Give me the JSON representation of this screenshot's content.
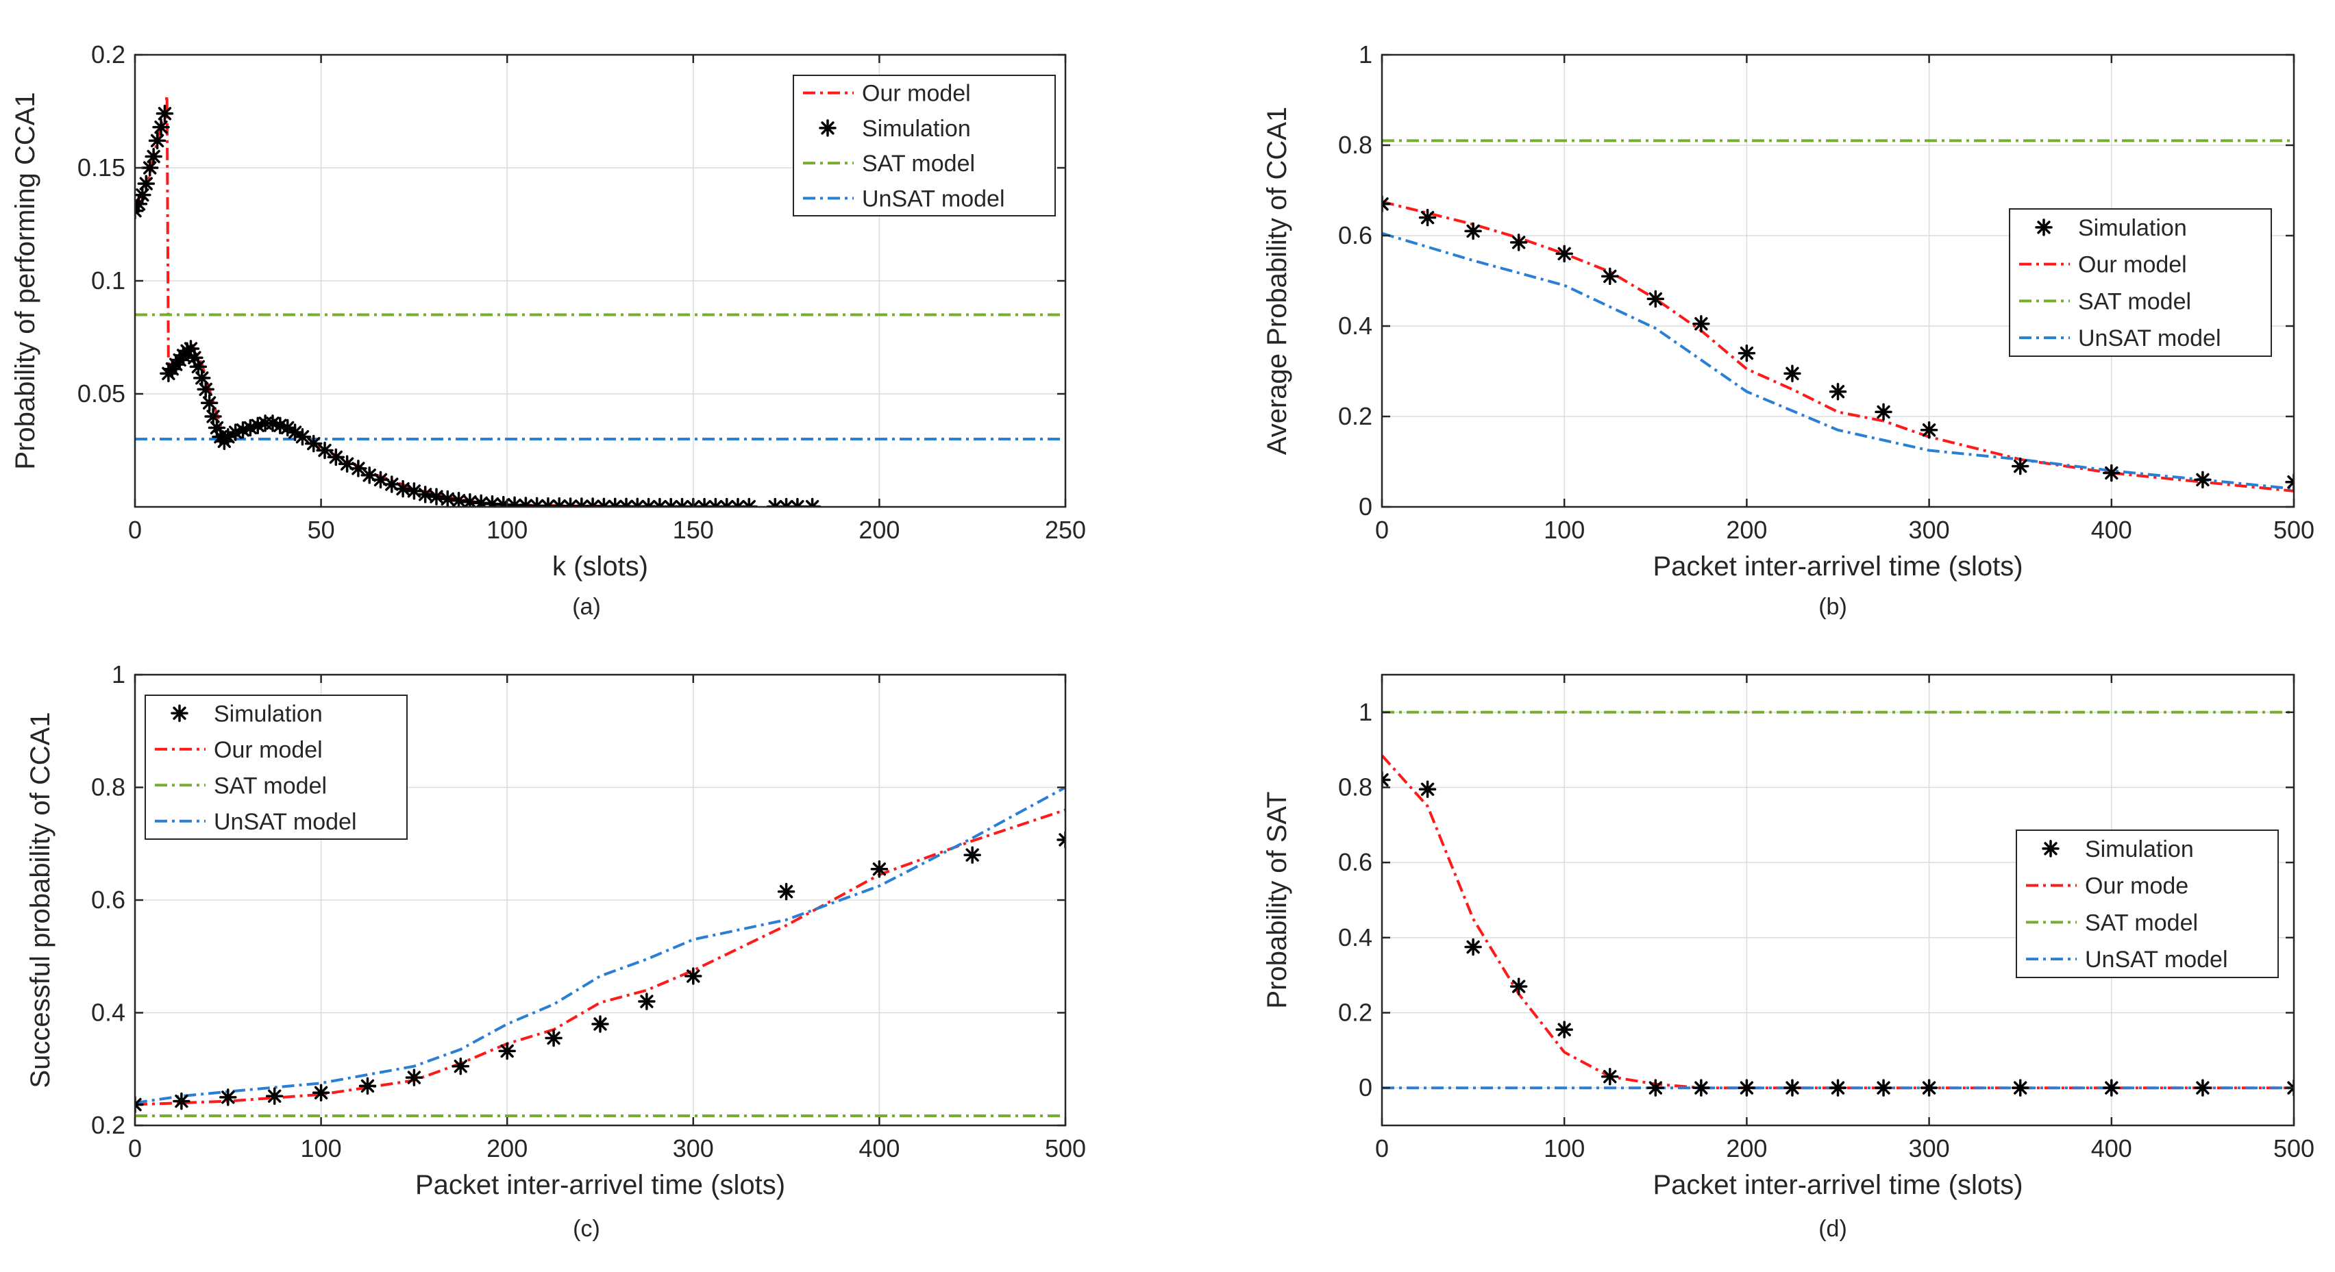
{
  "colors": {
    "our_model": "#ff1a1a",
    "simulation": "#000000",
    "sat_model": "#77ac30",
    "unsat_model": "#2a7fd4",
    "axis": "#262626",
    "grid": "#dcdcdc"
  },
  "chart_data": [
    {
      "type": "line",
      "panel_label": "(a)",
      "title": "",
      "xlabel": "k (slots)",
      "ylabel": "Probability of performing CCA1",
      "xlim": [
        0,
        250
      ],
      "ylim": [
        0,
        0.2
      ],
      "xticks": [
        0,
        50,
        100,
        150,
        200,
        250
      ],
      "yticks": [
        0.05,
        0.1,
        0.15,
        0.2
      ],
      "xtick_labels": [
        "0",
        "50",
        "100",
        "150",
        "200",
        "250"
      ],
      "ytick_labels": [
        "0.05",
        "0.1",
        "0.15",
        "0.2"
      ],
      "grid": true,
      "legend_position": "top-right",
      "legend": [
        "Our model",
        "Simulation",
        "SAT model",
        "UnSAT model"
      ],
      "series": [
        {
          "name": "Our model",
          "style": "dashdot",
          "x": [
            0,
            2,
            4,
            6,
            8,
            8.6,
            9,
            12,
            14,
            16,
            18,
            20,
            22,
            24,
            26,
            28,
            30,
            33,
            36,
            39,
            42,
            46,
            50,
            55,
            60,
            65,
            70,
            75,
            80,
            85,
            90,
            95,
            100,
            110,
            120,
            130,
            140,
            150,
            165
          ],
          "y": [
            0.131,
            0.137,
            0.147,
            0.162,
            0.175,
            0.182,
            0.06,
            0.064,
            0.068,
            0.07,
            0.063,
            0.052,
            0.041,
            0.031,
            0.031,
            0.033,
            0.034,
            0.036,
            0.037,
            0.036,
            0.034,
            0.03,
            0.026,
            0.022,
            0.018,
            0.014,
            0.011,
            0.008,
            0.006,
            0.004,
            0.0025,
            0.0015,
            0.001,
            0.0006,
            0.0004,
            0.0003,
            0.0002,
            0.0001,
            0.0001
          ]
        },
        {
          "name": "Simulation",
          "style": "marker",
          "x": [
            0,
            1,
            2,
            3,
            4,
            5,
            6,
            7,
            8,
            9,
            10,
            11,
            12,
            13,
            14,
            15,
            16,
            17,
            18,
            19,
            20,
            21,
            22,
            23,
            24,
            25,
            27,
            29,
            31,
            33,
            35,
            37,
            39,
            41,
            43,
            45,
            48,
            51,
            54,
            57,
            60,
            63,
            66,
            69,
            72,
            75,
            78,
            81,
            84,
            87,
            90,
            93,
            96,
            99,
            102,
            105,
            108,
            111,
            114,
            117,
            120,
            123,
            126,
            129,
            132,
            135,
            138,
            141,
            144,
            147,
            150,
            153,
            156,
            159,
            162,
            165,
            172,
            175,
            178,
            182
          ],
          "y": [
            0.131,
            0.134,
            0.138,
            0.143,
            0.15,
            0.155,
            0.162,
            0.168,
            0.174,
            0.059,
            0.061,
            0.063,
            0.065,
            0.067,
            0.069,
            0.07,
            0.066,
            0.062,
            0.057,
            0.052,
            0.046,
            0.04,
            0.035,
            0.031,
            0.029,
            0.031,
            0.033,
            0.034,
            0.035,
            0.036,
            0.037,
            0.037,
            0.036,
            0.035,
            0.033,
            0.031,
            0.028,
            0.025,
            0.022,
            0.019,
            0.017,
            0.014,
            0.012,
            0.01,
            0.008,
            0.007,
            0.0055,
            0.0045,
            0.0035,
            0.0028,
            0.0022,
            0.0017,
            0.0013,
            0.001,
            0.0008,
            0.0006,
            0.0005,
            0.0004,
            0.0004,
            0.0003,
            0.0003,
            0.0003,
            0.0002,
            0.0002,
            0.0002,
            0.0002,
            0.0001,
            0.0001,
            0.0001,
            0.0001,
            0.0001,
            0.0001,
            0.0001,
            0.0001,
            0.0001,
            0.0001,
            0.0001,
            0.0001,
            0.0001,
            0.0001
          ]
        },
        {
          "name": "SAT model",
          "style": "dashdot",
          "x": [
            0,
            250
          ],
          "y": [
            0.085,
            0.085
          ]
        },
        {
          "name": "UnSAT model",
          "style": "dashdot",
          "x": [
            0,
            250
          ],
          "y": [
            0.03,
            0.03
          ]
        }
      ]
    },
    {
      "type": "line",
      "panel_label": "(b)",
      "title": "",
      "xlabel": "Packet inter-arrivel time (slots)",
      "ylabel": "Average Probability of CCA1",
      "xlim": [
        0,
        500
      ],
      "ylim": [
        0,
        1
      ],
      "xticks": [
        0,
        100,
        200,
        300,
        400,
        500
      ],
      "yticks": [
        0,
        0.2,
        0.4,
        0.6,
        0.8,
        1
      ],
      "xtick_labels": [
        "0",
        "100",
        "200",
        "300",
        "400",
        "500"
      ],
      "ytick_labels": [
        "0",
        "0.2",
        "0.4",
        "0.6",
        "0.8",
        "1"
      ],
      "grid": true,
      "legend_position": "right",
      "legend": [
        "Simulation",
        "Our model",
        "SAT model",
        "UnSAT model"
      ],
      "series": [
        {
          "name": "Simulation",
          "style": "marker",
          "x": [
            0,
            25,
            50,
            75,
            100,
            125,
            150,
            175,
            200,
            225,
            250,
            275,
            300,
            350,
            400,
            450,
            500
          ],
          "y": [
            0.67,
            0.64,
            0.61,
            0.585,
            0.56,
            0.51,
            0.46,
            0.405,
            0.34,
            0.295,
            0.255,
            0.21,
            0.17,
            0.09,
            0.075,
            0.06,
            0.055
          ]
        },
        {
          "name": "Our model",
          "style": "dashdot",
          "x": [
            0,
            50,
            75,
            100,
            125,
            150,
            175,
            200,
            225,
            250,
            275,
            300,
            350,
            400,
            450,
            500
          ],
          "y": [
            0.675,
            0.625,
            0.595,
            0.56,
            0.52,
            0.46,
            0.39,
            0.305,
            0.26,
            0.21,
            0.19,
            0.155,
            0.105,
            0.075,
            0.055,
            0.035
          ]
        },
        {
          "name": "SAT model",
          "style": "dashdot",
          "x": [
            0,
            500
          ],
          "y": [
            0.81,
            0.81
          ]
        },
        {
          "name": "UnSAT model",
          "style": "dashdot",
          "x": [
            0,
            50,
            100,
            150,
            200,
            250,
            300,
            350,
            400,
            450,
            500
          ],
          "y": [
            0.605,
            0.545,
            0.49,
            0.395,
            0.255,
            0.17,
            0.125,
            0.105,
            0.08,
            0.06,
            0.04
          ]
        }
      ]
    },
    {
      "type": "line",
      "panel_label": "(c)",
      "title": "",
      "xlabel": "Packet inter-arrivel time (slots)",
      "ylabel": "Successful probability of CCA1",
      "xlim": [
        0,
        500
      ],
      "ylim": [
        0.2,
        1
      ],
      "xticks": [
        0,
        100,
        200,
        300,
        400,
        500
      ],
      "yticks": [
        0.2,
        0.4,
        0.6,
        0.8,
        1
      ],
      "xtick_labels": [
        "0",
        "100",
        "200",
        "300",
        "400",
        "500"
      ],
      "ytick_labels": [
        "0.2",
        "0.4",
        "0.6",
        "0.8",
        "1"
      ],
      "grid": true,
      "legend_position": "top-left",
      "legend": [
        "Simulation",
        "Our model",
        "SAT model",
        "UnSAT model"
      ],
      "series": [
        {
          "name": "Simulation",
          "style": "marker",
          "x": [
            0,
            25,
            50,
            75,
            100,
            125,
            150,
            175,
            200,
            225,
            250,
            275,
            300,
            350,
            400,
            450,
            500
          ],
          "y": [
            0.237,
            0.243,
            0.25,
            0.252,
            0.258,
            0.27,
            0.285,
            0.305,
            0.332,
            0.355,
            0.38,
            0.42,
            0.465,
            0.615,
            0.655,
            0.68,
            0.707
          ]
        },
        {
          "name": "Our model",
          "style": "dashdot",
          "x": [
            0,
            50,
            100,
            150,
            175,
            200,
            225,
            250,
            275,
            300,
            350,
            400,
            450,
            500
          ],
          "y": [
            0.237,
            0.243,
            0.255,
            0.28,
            0.31,
            0.345,
            0.37,
            0.418,
            0.44,
            0.475,
            0.555,
            0.645,
            0.705,
            0.76
          ]
        },
        {
          "name": "SAT model",
          "style": "dashdot",
          "x": [
            0,
            500
          ],
          "y": [
            0.217,
            0.217
          ]
        },
        {
          "name": "UnSAT model",
          "style": "dashdot",
          "x": [
            0,
            25,
            50,
            100,
            150,
            175,
            200,
            225,
            250,
            275,
            300,
            350,
            400,
            450,
            500
          ],
          "y": [
            0.24,
            0.252,
            0.26,
            0.275,
            0.305,
            0.335,
            0.38,
            0.415,
            0.465,
            0.495,
            0.53,
            0.565,
            0.625,
            0.71,
            0.8
          ]
        }
      ]
    },
    {
      "type": "line",
      "panel_label": "(d)",
      "title": "",
      "xlabel": "Packet inter-arrivel time (slots)",
      "ylabel": "Probability of SAT",
      "xlim": [
        0,
        500
      ],
      "ylim": [
        -0.1,
        1.1
      ],
      "xticks": [
        0,
        100,
        200,
        300,
        400,
        500
      ],
      "yticks": [
        0,
        0.2,
        0.4,
        0.6,
        0.8,
        1
      ],
      "xtick_labels": [
        "0",
        "100",
        "200",
        "300",
        "400",
        "500"
      ],
      "ytick_labels": [
        "0",
        "0.2",
        "0.4",
        "0.6",
        "0.8",
        "1"
      ],
      "grid": true,
      "legend_position": "right",
      "legend": [
        "Simulation",
        "Our mode",
        "SAT model",
        "UnSAT model"
      ],
      "series": [
        {
          "name": "Simulation",
          "style": "marker",
          "x": [
            0,
            25,
            50,
            75,
            100,
            125,
            150,
            175,
            200,
            225,
            250,
            275,
            300,
            350,
            400,
            450,
            500
          ],
          "y": [
            0.82,
            0.795,
            0.375,
            0.27,
            0.155,
            0.03,
            0,
            0,
            0,
            0,
            0,
            0,
            0,
            0,
            0,
            0,
            0
          ]
        },
        {
          "name": "Our mode",
          "style": "dashdot",
          "x": [
            0,
            25,
            50,
            75,
            100,
            125,
            150,
            175,
            200,
            500
          ],
          "y": [
            0.885,
            0.75,
            0.45,
            0.25,
            0.095,
            0.03,
            0.01,
            0,
            0,
            0
          ]
        },
        {
          "name": "SAT model",
          "style": "dashdot",
          "x": [
            0,
            500
          ],
          "y": [
            1,
            1
          ]
        },
        {
          "name": "UnSAT model",
          "style": "dashdot",
          "x": [
            0,
            500
          ],
          "y": [
            0,
            0
          ]
        }
      ]
    }
  ]
}
